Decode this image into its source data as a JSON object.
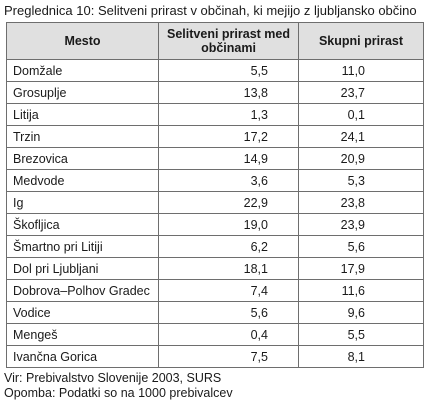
{
  "caption": {
    "label": "Preglednica 10:",
    "text": "Selitveni prirast v občinah, ki mejijo z ljubljansko občino"
  },
  "table": {
    "headers": [
      "Mesto",
      "Selitveni prirast med občinami",
      "Skupni prirast"
    ],
    "rows": [
      {
        "mesto": "Domžale",
        "selitveni": "5,5",
        "skupni": "11,0"
      },
      {
        "mesto": "Grosuplje",
        "selitveni": "13,8",
        "skupni": "23,7"
      },
      {
        "mesto": "Litija",
        "selitveni": "1,3",
        "skupni": "0,1"
      },
      {
        "mesto": "Trzin",
        "selitveni": "17,2",
        "skupni": "24,1"
      },
      {
        "mesto": "Brezovica",
        "selitveni": "14,9",
        "skupni": "20,9"
      },
      {
        "mesto": "Medvode",
        "selitveni": "3,6",
        "skupni": "5,3"
      },
      {
        "mesto": "Ig",
        "selitveni": "22,9",
        "skupni": "23,8"
      },
      {
        "mesto": "Škofljica",
        "selitveni": "19,0",
        "skupni": "23,9"
      },
      {
        "mesto": "Šmartno pri Litiji",
        "selitveni": "6,2",
        "skupni": "5,6"
      },
      {
        "mesto": "Dol pri Ljubljani",
        "selitveni": "18,1",
        "skupni": "17,9"
      },
      {
        "mesto": "Dobrova–Polhov Gradec",
        "selitveni": "7,4",
        "skupni": "11,6"
      },
      {
        "mesto": "Vodice",
        "selitveni": "5,6",
        "skupni": "9,6"
      },
      {
        "mesto": "Mengeš",
        "selitveni": "0,4",
        "skupni": "5,5"
      },
      {
        "mesto": "Ivančna Gorica",
        "selitveni": "7,5",
        "skupni": "8,1"
      }
    ]
  },
  "footer": {
    "source": "Vir: Prebivalstvo Slovenije 2003, SURS",
    "note": "Opomba: Podatki so na 1000 prebivalcev"
  }
}
